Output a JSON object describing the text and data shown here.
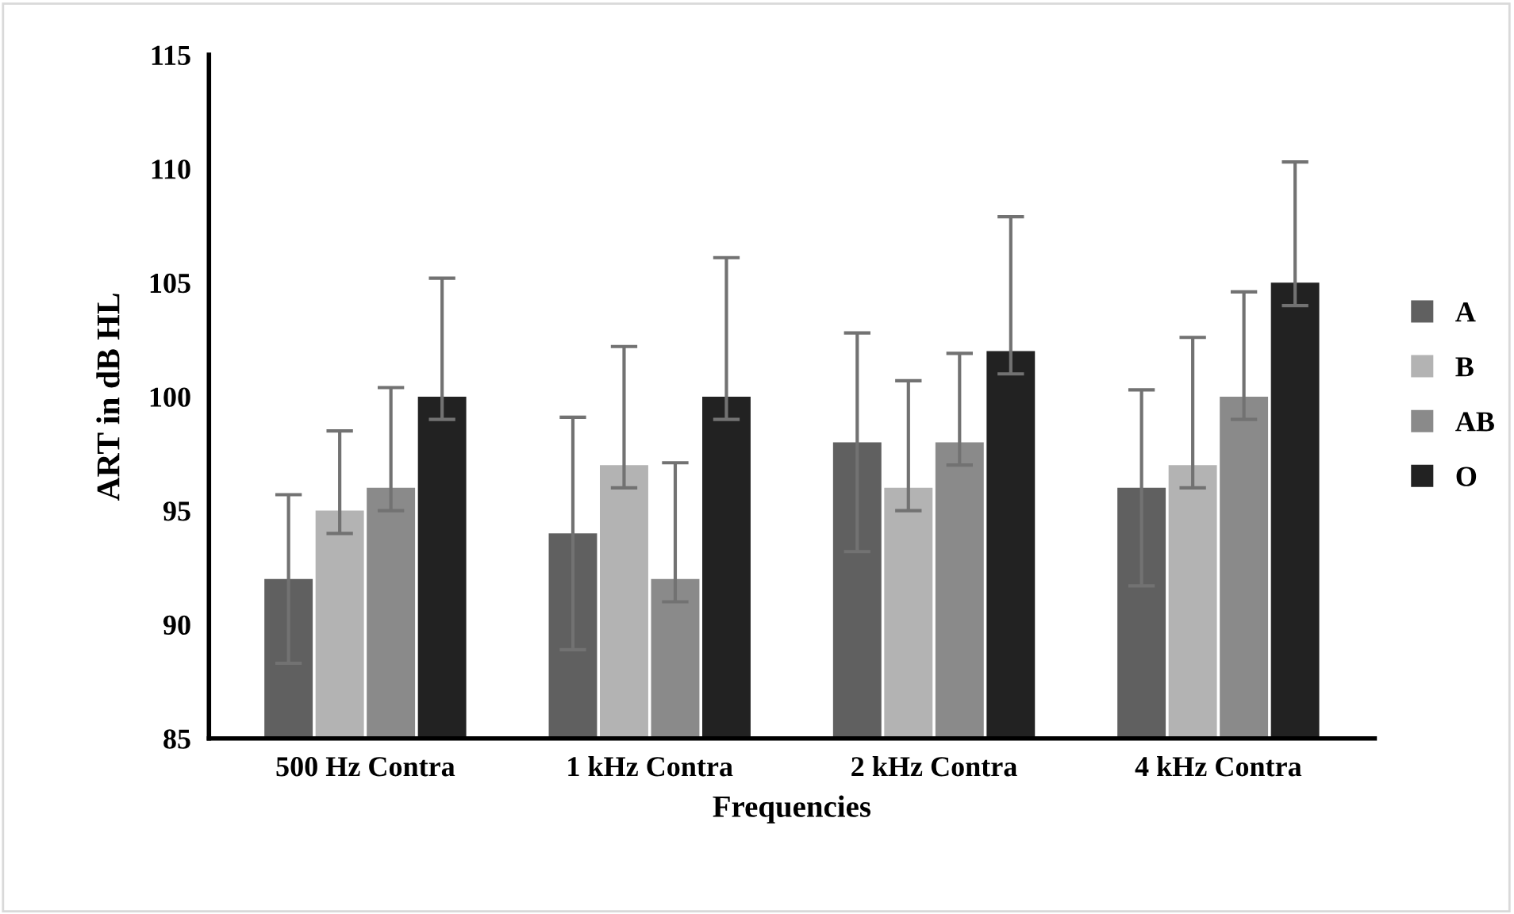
{
  "chart_data": {
    "type": "bar",
    "xlabel": "Frequencies",
    "ylabel": "ART in dB HL",
    "categories": [
      "500 Hz Contra",
      "1 kHz Contra",
      "2 kHz Contra",
      "4 kHz Contra"
    ],
    "ylim": [
      85,
      115
    ],
    "yticks": [
      85,
      90,
      95,
      100,
      105,
      110,
      115
    ],
    "grid": false,
    "legend": "right",
    "series": [
      {
        "name": "A",
        "color": "#606060",
        "values": [
          92,
          94,
          98,
          96
        ],
        "errors": [
          [
            88.3,
            95.7
          ],
          [
            88.9,
            99.1
          ],
          [
            93.2,
            102.8
          ],
          [
            91.7,
            100.3
          ]
        ]
      },
      {
        "name": "B",
        "color": "#b3b3b3",
        "values": [
          95,
          97,
          96,
          97
        ],
        "errors": [
          [
            94,
            98.5
          ],
          [
            96,
            102.2
          ],
          [
            95,
            100.7
          ],
          [
            96,
            102.6
          ]
        ]
      },
      {
        "name": "AB",
        "color": "#8a8a8a",
        "values": [
          96,
          92,
          98,
          100
        ],
        "errors": [
          [
            95,
            100.4
          ],
          [
            91,
            97.1
          ],
          [
            97,
            101.9
          ],
          [
            99,
            104.6
          ]
        ]
      },
      {
        "name": "O",
        "color": "#222222",
        "values": [
          100,
          100,
          102,
          105
        ],
        "errors": [
          [
            99,
            105.2
          ],
          [
            99,
            106.1
          ],
          [
            101,
            107.9
          ],
          [
            104,
            110.3
          ]
        ]
      }
    ]
  }
}
